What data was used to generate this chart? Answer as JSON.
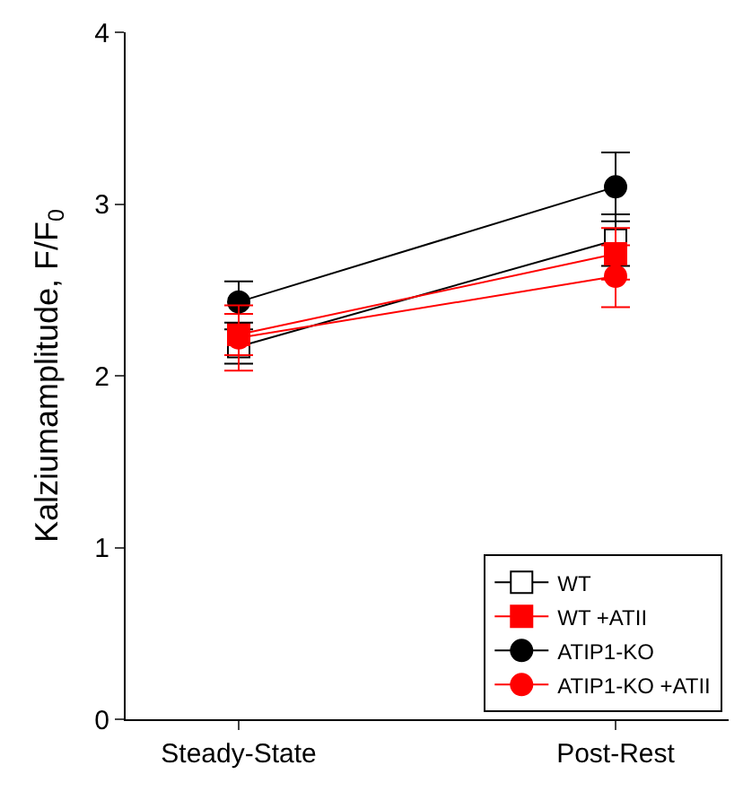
{
  "chart_data": {
    "type": "line",
    "ylabel": "Kalziumamplitude, F/F$_{0}$",
    "categories": [
      "Steady-State",
      "Post-Rest"
    ],
    "ylim": [
      0,
      4
    ],
    "yticks": [
      0,
      1,
      2,
      3,
      4
    ],
    "legend": "bottom right",
    "series": [
      {
        "name": "WT",
        "color": "#000000",
        "marker": "square",
        "colors": [
          "#ffffff",
          "#ffffff"
        ],
        "values": [
          2.17,
          2.79
        ],
        "errors": [
          0.1,
          0.15
        ]
      },
      {
        "name": "WT +ATII",
        "color": "#ff0000",
        "marker": "square",
        "values": [
          2.24,
          2.71
        ],
        "errors": [
          0.12,
          0.15
        ]
      },
      {
        "name": "ATIP1-KO",
        "color": "#000000",
        "marker": "circle",
        "values": [
          2.43,
          3.1
        ],
        "errors": [
          0.12,
          0.2
        ]
      },
      {
        "name": "ATIP1-KO +ATII",
        "color": "#ff0000",
        "marker": "circle",
        "values": [
          2.22,
          2.58
        ],
        "errors": [
          0.19,
          0.18
        ]
      }
    ]
  }
}
